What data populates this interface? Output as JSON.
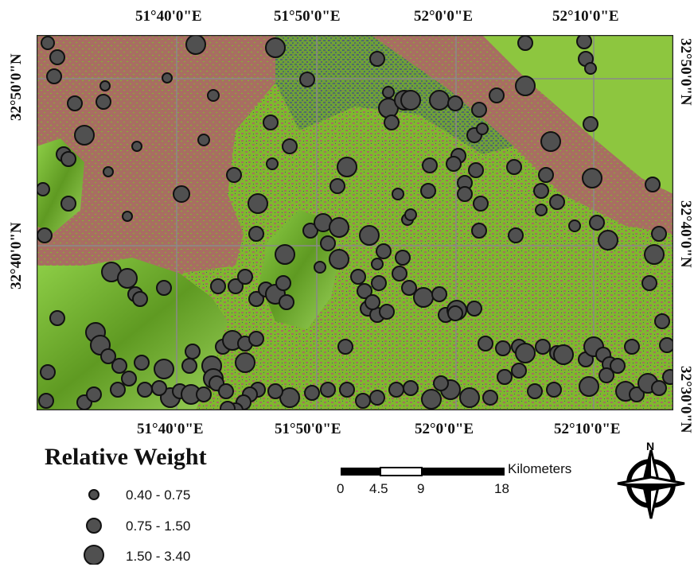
{
  "map": {
    "top_lon_labels": [
      "51°40'0\"E",
      "51°50'0\"E",
      "52°0'0\"E",
      "52°10'0\"E"
    ],
    "bottom_lon_labels": [
      "51°40'0\"E",
      "51°50'0\"E",
      "52°0'0\"E",
      "52°10'0\"E"
    ],
    "left_lat_labels": [
      "32°50'0\"N",
      "32°40'0\"N"
    ],
    "right_lat_labels": [
      "32°50'0\"N",
      "32°40'0\"N",
      "32°30'0\"N"
    ],
    "colors": {
      "vegetation": "#7fb82e",
      "bare_soil": "#a86e62",
      "water_edge": "#3c5a78",
      "mountain": "#5f9a22",
      "point_fill": "#505050",
      "grid": "#8a8a8a"
    }
  },
  "legend": {
    "title": "Relative Weight",
    "items": [
      {
        "label": "0.40 - 0.75",
        "size": "small"
      },
      {
        "label": "0.75 - 1.50",
        "size": "medium"
      },
      {
        "label": "1.50 - 3.40",
        "size": "large"
      }
    ]
  },
  "scale_bar": {
    "unit": "Kilometers",
    "ticks": [
      "0",
      "4.5",
      "9",
      "18"
    ]
  },
  "north_arrow": {
    "label": "N"
  }
}
